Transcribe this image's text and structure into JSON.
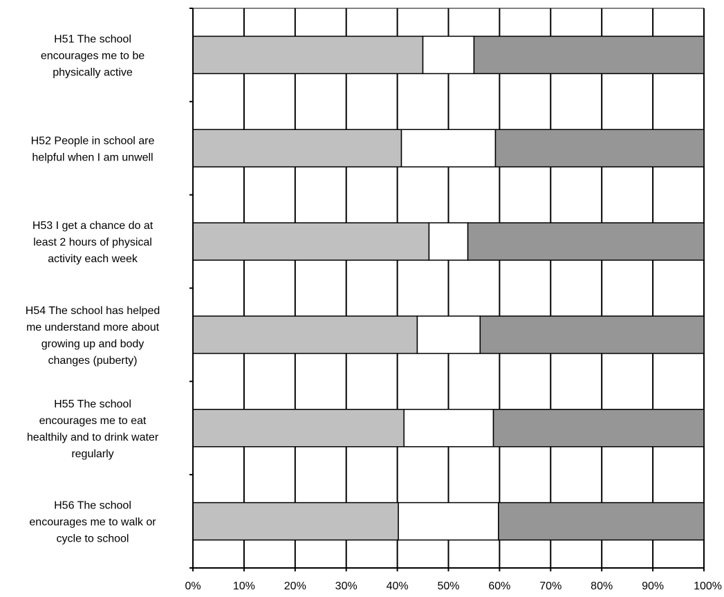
{
  "chart_data": {
    "type": "bar",
    "orientation": "horizontal",
    "stacked": "100%",
    "title": "",
    "xlabel": "",
    "ylabel": "",
    "xlim": [
      0,
      100
    ],
    "grid": true,
    "legend": "none",
    "x_ticks": [
      "0%",
      "10%",
      "20%",
      "30%",
      "40%",
      "50%",
      "60%",
      "70%",
      "80%",
      "90%",
      "100%"
    ],
    "categories": [
      [
        "H51 The school",
        "encourages me to be",
        "physically active"
      ],
      [
        "H52 People in school are",
        "helpful when I am unwell"
      ],
      [
        "H53 I get a chance do at",
        "least 2 hours of physical",
        "activity each week"
      ],
      [
        "H54 The school has helped",
        "me understand more about",
        "growing up and body",
        "changes (puberty)"
      ],
      [
        "H55 The school",
        "encourages me to eat",
        "healthily and to drink water",
        "regularly"
      ],
      [
        "H56 The school",
        "encourages me to walk or",
        "cycle to school"
      ]
    ],
    "series": [
      {
        "color": "#c0c0c0",
        "values": [
          45.0,
          40.8,
          46.2,
          43.9,
          41.3,
          40.2
        ]
      },
      {
        "color": "#ffffff",
        "values": [
          10.0,
          18.4,
          7.6,
          12.3,
          17.5,
          19.6
        ]
      },
      {
        "color": "#969696",
        "values": [
          45.0,
          40.8,
          46.2,
          43.8,
          41.2,
          40.2
        ]
      }
    ]
  }
}
